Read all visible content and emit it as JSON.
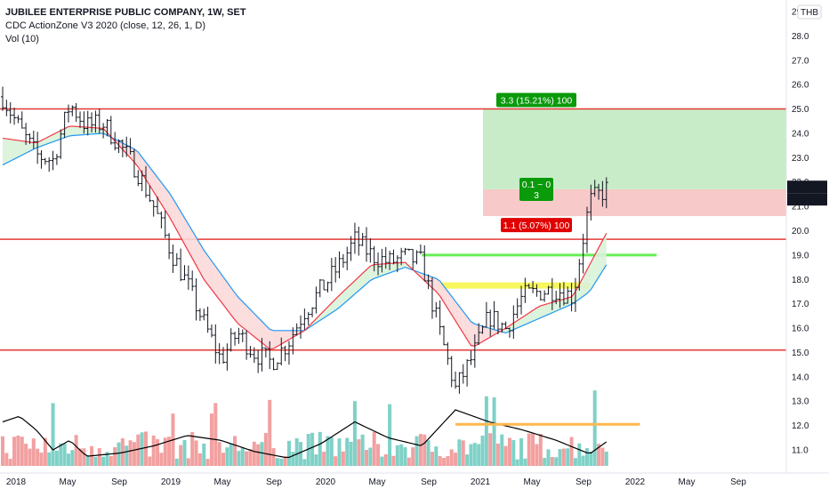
{
  "legend": {
    "title": "JUBILEE ENTERPRISE PUBLIC COMPANY, 1W, SET",
    "indicator": "CDC ActionZone V3 2020 (close, 12, 26, 1, D)",
    "volume": "Vol (10)"
  },
  "currency_label": "THB",
  "price_badge": {
    "price": "21.8",
    "countdown": "06:28:02"
  },
  "position": {
    "target_label": "3.3 (15.21%) 100",
    "stop_label": "1.1 (5.07%) 100",
    "ratio_label_line1": "0.1 ~ 0",
    "ratio_label_line2": "3",
    "entry": 21.7,
    "target": 25.0,
    "stop": 20.6
  },
  "colors": {
    "candle": "#131722",
    "ema_fast": "#f23645",
    "ema_slow": "#2196f3",
    "support_lines": "#e53935",
    "green_level": "#66ee55",
    "yellow_level": "#f5f542",
    "orange_level": "#ffb74d",
    "vol_up": "#7fd1c7",
    "vol_down": "#f2a0a0",
    "vol_ma": "#000000",
    "target_zone": "#c8ecc8",
    "stop_zone": "#f8c9c9"
  },
  "chart_data": {
    "type": "candlestick",
    "x_tick_labels": [
      "2018",
      "May",
      "Sep",
      "2019",
      "May",
      "Sep",
      "2020",
      "May",
      "Sep",
      "2021",
      "May",
      "Sep",
      "2022",
      "May",
      "Sep"
    ],
    "y_tick_labels": [
      "11.0",
      "12.0",
      "13.0",
      "14.0",
      "15.0",
      "16.0",
      "17.0",
      "18.0",
      "19.0",
      "20.0",
      "21.0",
      "22.0",
      "23.0",
      "24.0",
      "25.0",
      "26.0",
      "27.0",
      "28.0",
      "29.0"
    ],
    "ylim": [
      10.6,
      29.2
    ],
    "horizontal_levels": [
      {
        "price": 25.0,
        "color": "red"
      },
      {
        "price": 19.65,
        "color": "red"
      },
      {
        "price": 15.1,
        "color": "red"
      },
      {
        "price": 19.0,
        "color": "green",
        "from": "2020-01",
        "to": "2021-03"
      },
      {
        "price": 17.75,
        "color": "yellow",
        "from": "2020-02",
        "to": "2020-11"
      },
      {
        "price": 12.05,
        "color": "orange",
        "from": "2020-03",
        "to": "2021-02"
      }
    ],
    "price_anchors": [
      [
        "2017-12",
        25.5
      ],
      [
        "2018-01",
        24.2
      ],
      [
        "2018-02",
        23.1
      ],
      [
        "2018-03",
        22.9
      ],
      [
        "2018-04",
        25.2
      ],
      [
        "2018-05",
        24.3
      ],
      [
        "2018-06",
        24.4
      ],
      [
        "2018-07",
        23.5
      ],
      [
        "2018-08",
        22.5
      ],
      [
        "2018-09",
        21.0
      ],
      [
        "2018-10",
        19.2
      ],
      [
        "2018-11",
        17.8
      ],
      [
        "2018-12",
        16.2
      ],
      [
        "2019-01",
        14.7
      ],
      [
        "2019-02",
        15.8
      ],
      [
        "2019-03",
        15.0
      ],
      [
        "2019-04",
        14.6
      ],
      [
        "2019-05",
        15.4
      ],
      [
        "2019-06",
        16.7
      ],
      [
        "2019-07",
        17.6
      ],
      [
        "2019-08",
        18.5
      ],
      [
        "2019-09",
        19.6
      ],
      [
        "2019-10",
        19.0
      ],
      [
        "2019-11",
        18.7
      ],
      [
        "2019-12",
        18.9
      ],
      [
        "2020-01",
        18.7
      ],
      [
        "2020-02",
        16.0
      ],
      [
        "2020-03",
        13.5
      ],
      [
        "2020-04",
        14.8
      ],
      [
        "2020-05",
        16.5
      ],
      [
        "2020-06",
        16.0
      ],
      [
        "2020-07",
        17.3
      ],
      [
        "2020-08",
        17.5
      ],
      [
        "2020-09",
        17.6
      ],
      [
        "2020-10",
        17.3
      ],
      [
        "2020-11",
        21.2
      ],
      [
        "2020-12",
        21.7
      ]
    ],
    "ema_fast_anchors": [
      [
        "2017-12",
        23.8
      ],
      [
        "2018-02",
        23.6
      ],
      [
        "2018-04",
        24.3
      ],
      [
        "2018-06",
        24.2
      ],
      [
        "2018-08",
        22.7
      ],
      [
        "2018-10",
        20.5
      ],
      [
        "2018-12",
        18.0
      ],
      [
        "2019-02",
        16.2
      ],
      [
        "2019-04",
        15.1
      ],
      [
        "2019-06",
        15.9
      ],
      [
        "2019-08",
        17.3
      ],
      [
        "2019-10",
        18.6
      ],
      [
        "2019-12",
        18.7
      ],
      [
        "2020-02",
        17.4
      ],
      [
        "2020-04",
        15.2
      ],
      [
        "2020-06",
        16.0
      ],
      [
        "2020-08",
        16.9
      ],
      [
        "2020-10",
        17.3
      ],
      [
        "2020-11",
        18.6
      ],
      [
        "2020-12",
        19.9
      ]
    ],
    "ema_slow_anchors": [
      [
        "2017-12",
        22.7
      ],
      [
        "2018-02",
        23.4
      ],
      [
        "2018-04",
        23.9
      ],
      [
        "2018-06",
        24.0
      ],
      [
        "2018-08",
        23.3
      ],
      [
        "2018-10",
        21.5
      ],
      [
        "2018-12",
        19.2
      ],
      [
        "2019-02",
        17.3
      ],
      [
        "2019-04",
        15.9
      ],
      [
        "2019-06",
        15.9
      ],
      [
        "2019-08",
        16.8
      ],
      [
        "2019-10",
        18.0
      ],
      [
        "2019-12",
        18.5
      ],
      [
        "2020-02",
        18.0
      ],
      [
        "2020-04",
        16.2
      ],
      [
        "2020-06",
        15.8
      ],
      [
        "2020-08",
        16.4
      ],
      [
        "2020-10",
        17.0
      ],
      [
        "2020-11",
        17.5
      ],
      [
        "2020-12",
        18.6
      ]
    ],
    "volume_ma_anchors": [
      [
        "2017-12",
        0.55
      ],
      [
        "2018-01",
        0.62
      ],
      [
        "2018-02",
        0.45
      ],
      [
        "2018-03",
        0.2
      ],
      [
        "2018-04",
        0.32
      ],
      [
        "2018-05",
        0.12
      ],
      [
        "2018-07",
        0.16
      ],
      [
        "2018-09",
        0.25
      ],
      [
        "2018-11",
        0.38
      ],
      [
        "2019-01",
        0.32
      ],
      [
        "2019-03",
        0.18
      ],
      [
        "2019-05",
        0.1
      ],
      [
        "2019-07",
        0.28
      ],
      [
        "2019-09",
        0.55
      ],
      [
        "2019-11",
        0.35
      ],
      [
        "2020-01",
        0.25
      ],
      [
        "2020-03",
        0.7
      ],
      [
        "2020-05",
        0.55
      ],
      [
        "2020-07",
        0.45
      ],
      [
        "2020-09",
        0.32
      ],
      [
        "2020-11",
        0.15
      ],
      [
        "2020-12",
        0.3
      ]
    ]
  }
}
